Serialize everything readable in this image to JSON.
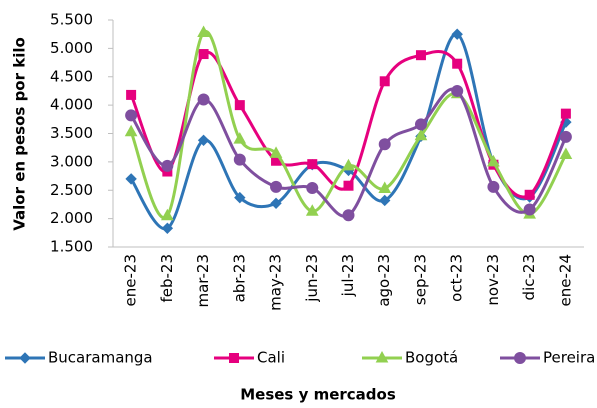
{
  "chart_data": {
    "type": "line",
    "smooth": true,
    "y_label": "Valor en pesos por kilo",
    "x_label": "Meses  y mercados",
    "categories": [
      "ene-23",
      "feb-23",
      "mar-23",
      "abr-23",
      "may-23",
      "jun-23",
      "jul-23",
      "ago-23",
      "sep-23",
      "oct-23",
      "nov-23",
      "dic-23",
      "ene-24"
    ],
    "ylim": [
      1500,
      5500
    ],
    "yticks": [
      {
        "value": 1500,
        "label": "1.500"
      },
      {
        "value": 2000,
        "label": "2.000"
      },
      {
        "value": 2500,
        "label": "2.500"
      },
      {
        "value": 3000,
        "label": "3.000"
      },
      {
        "value": 3500,
        "label": "3.500"
      },
      {
        "value": 4000,
        "label": "4.000"
      },
      {
        "value": 4500,
        "label": "4.500"
      },
      {
        "value": 5000,
        "label": "5.000"
      },
      {
        "value": 5500,
        "label": "5.500"
      }
    ],
    "grid": false,
    "legend": "bottom",
    "series": [
      {
        "name": "Bucaramanga",
        "color": "#2e75b6",
        "marker": "diamond",
        "values": [
          2700,
          1830,
          3380,
          2370,
          2270,
          2950,
          2850,
          2320,
          3450,
          5250,
          2980,
          2380,
          3700
        ]
      },
      {
        "name": "Cali",
        "color": "#e6007e",
        "marker": "square",
        "values": [
          4180,
          2830,
          4900,
          4000,
          3020,
          2960,
          2580,
          4420,
          4880,
          4730,
          2950,
          2420,
          3850
        ]
      },
      {
        "name": "Bogotá",
        "color": "#92d050",
        "marker": "triangle",
        "values": [
          3530,
          2050,
          5280,
          3400,
          3150,
          2130,
          2930,
          2530,
          3460,
          4200,
          3000,
          2080,
          3130
        ]
      },
      {
        "name": "Pereira",
        "color": "#7f4f9f",
        "marker": "circle",
        "values": [
          3820,
          2930,
          4100,
          3040,
          2560,
          2540,
          2060,
          3310,
          3660,
          4250,
          2560,
          2160,
          3440
        ]
      }
    ]
  }
}
